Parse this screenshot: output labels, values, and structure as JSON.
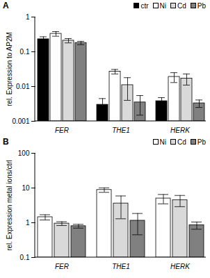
{
  "chart_data": [
    {
      "type": "bar",
      "title": "A",
      "y_label": "rel. Expression to AP2M",
      "categories": [
        "FER",
        "THE1",
        "HERK"
      ],
      "series": [
        {
          "name": "ctr",
          "color": "#000000",
          "values": [
            0.23,
            0.003,
            0.0038
          ],
          "errors": [
            0.04,
            0.0015,
            0.001
          ]
        },
        {
          "name": "Ni",
          "color": "#ffffff",
          "values": [
            0.33,
            0.027,
            0.019
          ],
          "errors": [
            0.05,
            0.004,
            0.006
          ]
        },
        {
          "name": "Cd",
          "color": "#d9d9d9",
          "values": [
            0.21,
            0.011,
            0.017
          ],
          "errors": [
            0.03,
            0.007,
            0.006
          ]
        },
        {
          "name": "Pb",
          "color": "#808080",
          "values": [
            0.18,
            0.0035,
            0.0033
          ],
          "errors": [
            0.02,
            0.002,
            0.0008
          ]
        }
      ],
      "ylim": [
        0.001,
        1
      ],
      "yticks": [
        0.001,
        0.01,
        0.1,
        1
      ],
      "log": "y",
      "legend": "top-right"
    },
    {
      "type": "bar",
      "title": "B",
      "y_label": "rel. Expression metal ions/ctrl",
      "categories": [
        "FER",
        "THE1",
        "HERK"
      ],
      "series": [
        {
          "name": "Ni",
          "color": "#ffffff",
          "values": [
            1.45,
            8.8,
            5.0
          ],
          "errors": [
            0.25,
            1.3,
            1.5
          ]
        },
        {
          "name": "Cd",
          "color": "#d9d9d9",
          "values": [
            0.95,
            3.6,
            4.5
          ],
          "errors": [
            0.12,
            2.3,
            1.6
          ]
        },
        {
          "name": "Pb",
          "color": "#808080",
          "values": [
            0.8,
            1.15,
            0.85
          ],
          "errors": [
            0.1,
            0.7,
            0.2
          ]
        }
      ],
      "ylim": [
        0.1,
        100
      ],
      "yticks": [
        0.1,
        1,
        10,
        100
      ],
      "log": "y",
      "legend": "top-right"
    }
  ]
}
